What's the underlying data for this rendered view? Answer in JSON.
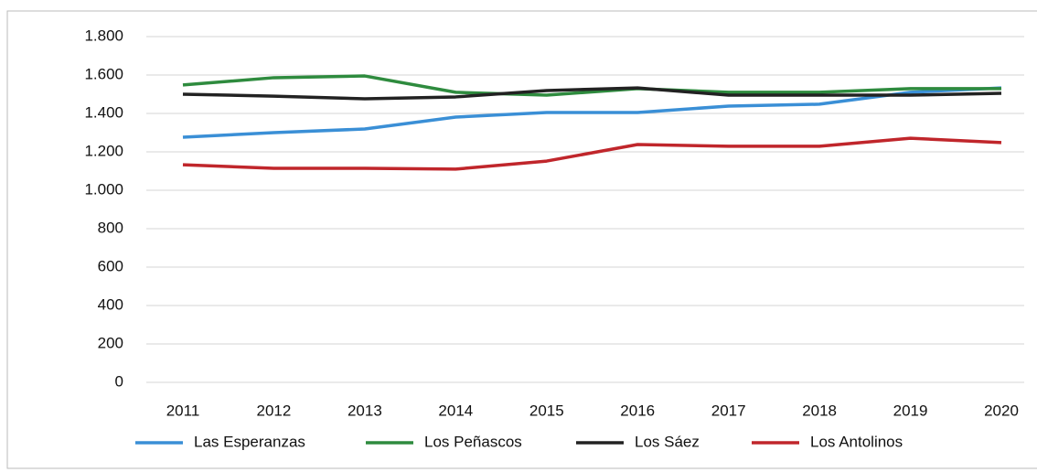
{
  "chart_data": {
    "type": "line",
    "categories": [
      "2011",
      "2012",
      "2013",
      "2014",
      "2015",
      "2016",
      "2017",
      "2018",
      "2019",
      "2020"
    ],
    "series": [
      {
        "name": "Las Esperanzas",
        "color": "#3a8fd6",
        "values": [
          1276,
          1300,
          1319,
          1381,
          1405,
          1405,
          1438,
          1448,
          1510,
          1533
        ]
      },
      {
        "name": "Los Peñascos",
        "color": "#2e8b3e",
        "values": [
          1548,
          1586,
          1595,
          1510,
          1495,
          1529,
          1510,
          1510,
          1529,
          1529
        ]
      },
      {
        "name": "Los Sáez",
        "color": "#222222",
        "values": [
          1500,
          1490,
          1476,
          1486,
          1519,
          1533,
          1495,
          1495,
          1495,
          1505
        ]
      },
      {
        "name": "Los Antolinos",
        "color": "#c0262b",
        "values": [
          1133,
          1114,
          1114,
          1110,
          1152,
          1238,
          1229,
          1229,
          1271,
          1248
        ]
      }
    ],
    "ylim": [
      0,
      1800
    ],
    "yticks": [
      0,
      200,
      400,
      600,
      800,
      {
        "value": 1000,
        "label": "1.000"
      },
      {
        "value": 1200,
        "label": "1.200"
      },
      {
        "value": 1400,
        "label": "1.400"
      },
      {
        "value": 1600,
        "label": "1.600"
      },
      {
        "value": 1800,
        "label": "1.800"
      }
    ],
    "grid": true,
    "legend": "bottom"
  }
}
